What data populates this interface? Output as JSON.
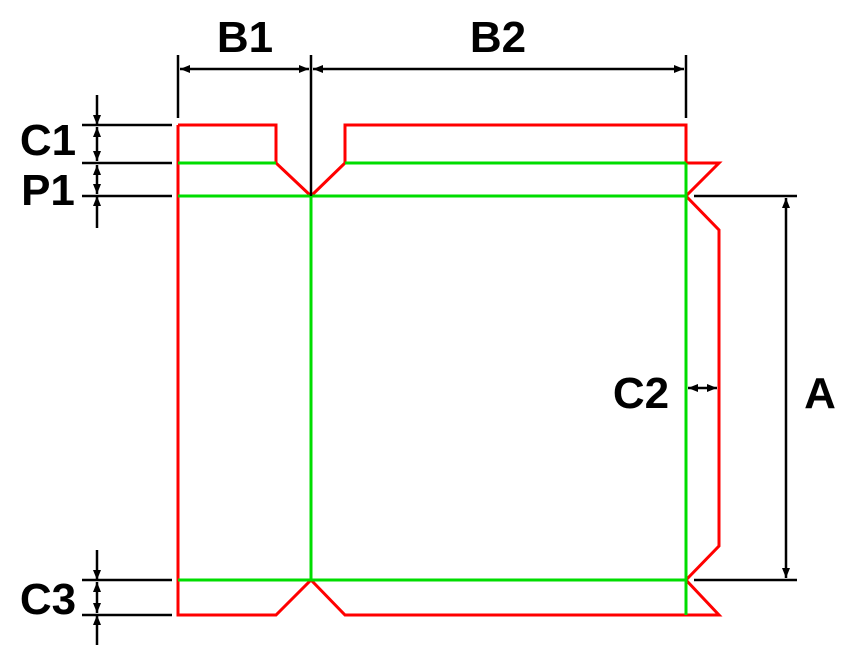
{
  "labels": {
    "b1": "B1",
    "b2": "B2",
    "c1": "C1",
    "p1": "P1",
    "c2": "C2",
    "c3": "C3",
    "a": "A"
  },
  "colors": {
    "cut_line": "#ff0000",
    "fold_line": "#00dd00",
    "dimension": "#000000",
    "background": "#ffffff"
  }
}
